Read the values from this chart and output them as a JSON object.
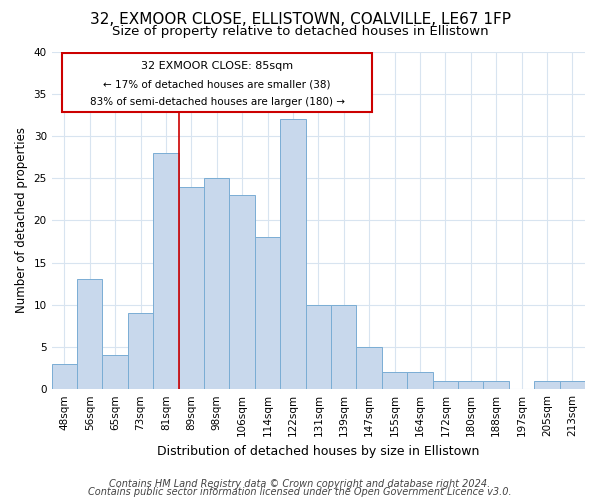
{
  "title1": "32, EXMOOR CLOSE, ELLISTOWN, COALVILLE, LE67 1FP",
  "title2": "Size of property relative to detached houses in Ellistown",
  "xlabel": "Distribution of detached houses by size in Ellistown",
  "ylabel": "Number of detached properties",
  "categories": [
    "48sqm",
    "56sqm",
    "65sqm",
    "73sqm",
    "81sqm",
    "89sqm",
    "98sqm",
    "106sqm",
    "114sqm",
    "122sqm",
    "131sqm",
    "139sqm",
    "147sqm",
    "155sqm",
    "164sqm",
    "172sqm",
    "180sqm",
    "188sqm",
    "197sqm",
    "205sqm",
    "213sqm"
  ],
  "values": [
    3,
    13,
    4,
    9,
    28,
    24,
    25,
    23,
    18,
    32,
    10,
    10,
    5,
    2,
    2,
    1,
    1,
    1,
    0,
    1,
    1
  ],
  "bar_color": "#c8d8ec",
  "bar_edge_color": "#7aadd4",
  "vline_index": 5,
  "ylim": [
    0,
    40
  ],
  "yticks": [
    0,
    5,
    10,
    15,
    20,
    25,
    30,
    35,
    40
  ],
  "annotation_title": "32 EXMOOR CLOSE: 85sqm",
  "annotation_line1": "← 17% of detached houses are smaller (38)",
  "annotation_line2": "83% of semi-detached houses are larger (180) →",
  "annotation_box_color": "#ffffff",
  "annotation_box_edge": "#cc0000",
  "vline_color": "#cc0000",
  "footer1": "Contains HM Land Registry data © Crown copyright and database right 2024.",
  "footer2": "Contains public sector information licensed under the Open Government Licence v3.0.",
  "bg_color": "#ffffff",
  "plot_bg_color": "#ffffff",
  "grid_color": "#d8e4f0",
  "title1_fontsize": 11,
  "title2_fontsize": 9.5,
  "xlabel_fontsize": 9,
  "ylabel_fontsize": 8.5,
  "tick_fontsize": 7.5,
  "footer_fontsize": 7
}
